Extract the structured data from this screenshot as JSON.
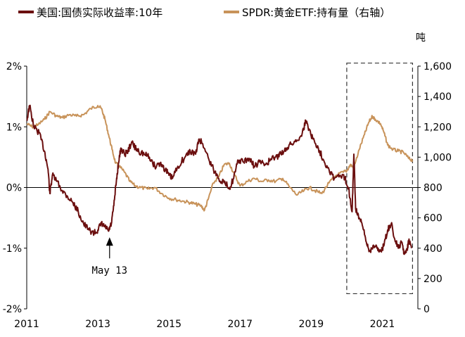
{
  "chart_data": {
    "type": "line",
    "title": "",
    "legend": {
      "placement": "top",
      "entries": [
        {
          "name": "美国:国债实际收益率:10年",
          "color": "#6b0f0f"
        },
        {
          "name": "SPDR:黄金ETF:持有量（右轴）",
          "color": "#c8935a"
        }
      ]
    },
    "x_axis": {
      "range": [
        2011,
        2022
      ],
      "ticks": [
        "2011",
        "2013",
        "2015",
        "2017",
        "2019",
        "2021"
      ],
      "tick_values": [
        2011,
        2013,
        2015,
        2017,
        2019,
        2021
      ]
    },
    "y_left": {
      "range": [
        -2,
        2
      ],
      "ticks": [
        "-2%",
        "-1%",
        "0%",
        "1%",
        "2%"
      ],
      "tick_values": [
        -2,
        -1,
        0,
        1,
        2
      ]
    },
    "y_right": {
      "label": "吨",
      "range": [
        0,
        1600
      ],
      "ticks": [
        "0",
        "200",
        "400",
        "600",
        "800",
        "1,000",
        "1,200",
        "1,400",
        "1,600"
      ],
      "tick_values": [
        0,
        200,
        400,
        600,
        800,
        1000,
        1200,
        1400,
        1600
      ]
    },
    "grid": false,
    "annotation": {
      "text": "May 13",
      "x": 2013.33,
      "y": -0.82
    },
    "highlight_box": {
      "x_range": [
        2020.0,
        2021.85
      ],
      "y_right_range": [
        100,
        1620
      ]
    },
    "series": [
      {
        "name": "美国:国债实际收益率:10年",
        "axis": "left",
        "color": "#6b0f0f",
        "points": [
          [
            2011.0,
            1.1
          ],
          [
            2011.08,
            1.35
          ],
          [
            2011.2,
            1.0
          ],
          [
            2011.35,
            0.9
          ],
          [
            2011.5,
            0.6
          ],
          [
            2011.6,
            0.3
          ],
          [
            2011.65,
            -0.1
          ],
          [
            2011.72,
            0.2
          ],
          [
            2011.85,
            0.1
          ],
          [
            2012.0,
            -0.05
          ],
          [
            2012.15,
            -0.15
          ],
          [
            2012.3,
            -0.25
          ],
          [
            2012.45,
            -0.4
          ],
          [
            2012.6,
            -0.6
          ],
          [
            2012.75,
            -0.7
          ],
          [
            2012.9,
            -0.75
          ],
          [
            2013.0,
            -0.7
          ],
          [
            2013.1,
            -0.6
          ],
          [
            2013.2,
            -0.65
          ],
          [
            2013.3,
            -0.72
          ],
          [
            2013.38,
            -0.6
          ],
          [
            2013.45,
            -0.3
          ],
          [
            2013.52,
            0.1
          ],
          [
            2013.58,
            0.4
          ],
          [
            2013.65,
            0.65
          ],
          [
            2013.75,
            0.55
          ],
          [
            2013.85,
            0.6
          ],
          [
            2013.95,
            0.75
          ],
          [
            2014.05,
            0.65
          ],
          [
            2014.15,
            0.6
          ],
          [
            2014.3,
            0.55
          ],
          [
            2014.45,
            0.5
          ],
          [
            2014.6,
            0.35
          ],
          [
            2014.75,
            0.4
          ],
          [
            2014.9,
            0.3
          ],
          [
            2015.0,
            0.2
          ],
          [
            2015.1,
            0.15
          ],
          [
            2015.25,
            0.35
          ],
          [
            2015.45,
            0.5
          ],
          [
            2015.6,
            0.6
          ],
          [
            2015.75,
            0.55
          ],
          [
            2015.85,
            0.8
          ],
          [
            2015.95,
            0.72
          ],
          [
            2016.1,
            0.5
          ],
          [
            2016.25,
            0.3
          ],
          [
            2016.4,
            0.15
          ],
          [
            2016.55,
            0.08
          ],
          [
            2016.7,
            0.0
          ],
          [
            2016.82,
            0.15
          ],
          [
            2016.95,
            0.45
          ],
          [
            2017.1,
            0.42
          ],
          [
            2017.25,
            0.48
          ],
          [
            2017.4,
            0.35
          ],
          [
            2017.55,
            0.42
          ],
          [
            2017.7,
            0.38
          ],
          [
            2017.85,
            0.45
          ],
          [
            2018.0,
            0.5
          ],
          [
            2018.15,
            0.55
          ],
          [
            2018.3,
            0.65
          ],
          [
            2018.45,
            0.72
          ],
          [
            2018.6,
            0.78
          ],
          [
            2018.75,
            0.9
          ],
          [
            2018.85,
            1.1
          ],
          [
            2018.95,
            0.95
          ],
          [
            2019.05,
            0.8
          ],
          [
            2019.2,
            0.65
          ],
          [
            2019.35,
            0.45
          ],
          [
            2019.5,
            0.3
          ],
          [
            2019.65,
            0.15
          ],
          [
            2019.8,
            0.2
          ],
          [
            2019.95,
            0.15
          ],
          [
            2020.05,
            0.0
          ],
          [
            2020.15,
            -0.4
          ],
          [
            2020.2,
            0.55
          ],
          [
            2020.25,
            -0.35
          ],
          [
            2020.35,
            -0.5
          ],
          [
            2020.45,
            -0.65
          ],
          [
            2020.55,
            -0.9
          ],
          [
            2020.65,
            -1.05
          ],
          [
            2020.75,
            -0.95
          ],
          [
            2020.85,
            -1.0
          ],
          [
            2020.95,
            -1.05
          ],
          [
            2021.05,
            -0.95
          ],
          [
            2021.15,
            -0.7
          ],
          [
            2021.25,
            -0.6
          ],
          [
            2021.35,
            -0.85
          ],
          [
            2021.45,
            -1.0
          ],
          [
            2021.55,
            -0.9
          ],
          [
            2021.62,
            -1.1
          ],
          [
            2021.7,
            -1.0
          ],
          [
            2021.75,
            -0.85
          ],
          [
            2021.82,
            -1.0
          ]
        ]
      },
      {
        "name": "SPDR:黄金ETF:持有量（右轴）",
        "axis": "right",
        "color": "#c8935a",
        "points": [
          [
            2011.0,
            1220
          ],
          [
            2011.15,
            1200
          ],
          [
            2011.3,
            1210
          ],
          [
            2011.5,
            1250
          ],
          [
            2011.65,
            1300
          ],
          [
            2011.85,
            1270
          ],
          [
            2012.0,
            1260
          ],
          [
            2012.2,
            1280
          ],
          [
            2012.4,
            1270
          ],
          [
            2012.6,
            1280
          ],
          [
            2012.8,
            1320
          ],
          [
            2013.0,
            1340
          ],
          [
            2013.1,
            1320
          ],
          [
            2013.2,
            1250
          ],
          [
            2013.3,
            1150
          ],
          [
            2013.4,
            1050
          ],
          [
            2013.5,
            960
          ],
          [
            2013.6,
            940
          ],
          [
            2013.75,
            900
          ],
          [
            2013.9,
            840
          ],
          [
            2014.05,
            810
          ],
          [
            2014.2,
            800
          ],
          [
            2014.4,
            790
          ],
          [
            2014.6,
            800
          ],
          [
            2014.8,
            760
          ],
          [
            2015.0,
            730
          ],
          [
            2015.2,
            720
          ],
          [
            2015.4,
            710
          ],
          [
            2015.6,
            700
          ],
          [
            2015.75,
            690
          ],
          [
            2015.9,
            680
          ],
          [
            2016.0,
            650
          ],
          [
            2016.1,
            720
          ],
          [
            2016.25,
            830
          ],
          [
            2016.4,
            870
          ],
          [
            2016.55,
            950
          ],
          [
            2016.7,
            960
          ],
          [
            2016.85,
            880
          ],
          [
            2017.0,
            810
          ],
          [
            2017.2,
            840
          ],
          [
            2017.4,
            860
          ],
          [
            2017.6,
            840
          ],
          [
            2017.8,
            850
          ],
          [
            2018.0,
            840
          ],
          [
            2018.2,
            860
          ],
          [
            2018.4,
            800
          ],
          [
            2018.6,
            750
          ],
          [
            2018.8,
            780
          ],
          [
            2018.95,
            800
          ],
          [
            2019.1,
            780
          ],
          [
            2019.3,
            760
          ],
          [
            2019.5,
            830
          ],
          [
            2019.7,
            880
          ],
          [
            2019.9,
            900
          ],
          [
            2020.0,
            910
          ],
          [
            2020.1,
            950
          ],
          [
            2020.2,
            930
          ],
          [
            2020.35,
            1050
          ],
          [
            2020.5,
            1150
          ],
          [
            2020.62,
            1230
          ],
          [
            2020.72,
            1270
          ],
          [
            2020.8,
            1250
          ],
          [
            2020.95,
            1220
          ],
          [
            2021.05,
            1160
          ],
          [
            2021.15,
            1080
          ],
          [
            2021.3,
            1050
          ],
          [
            2021.45,
            1040
          ],
          [
            2021.6,
            1030
          ],
          [
            2021.75,
            990
          ],
          [
            2021.85,
            980
          ]
        ]
      }
    ]
  }
}
